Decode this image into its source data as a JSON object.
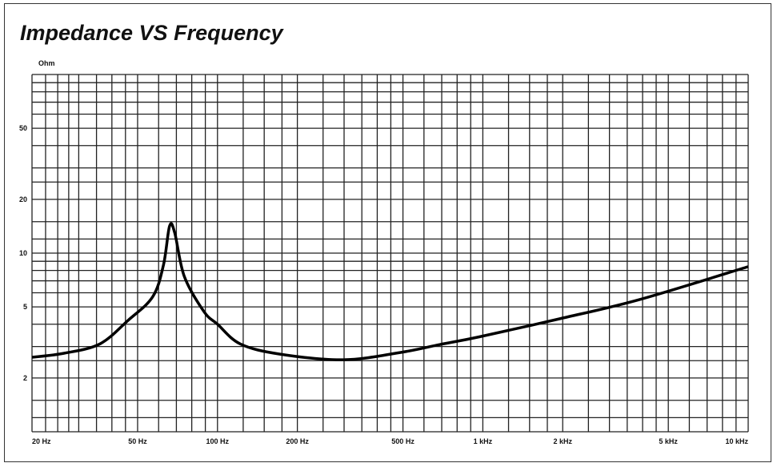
{
  "chart_data": {
    "type": "line",
    "title": "Impedance VS Frequency",
    "ylabel": "Ohm",
    "xscale": "log",
    "yscale": "log",
    "xlim": [
      20,
      10000
    ],
    "ylim": [
      1,
      100
    ],
    "grid": true,
    "x_ticks": [
      {
        "value": 20,
        "label": "20 Hz"
      },
      {
        "value": 50,
        "label": "50 Hz"
      },
      {
        "value": 100,
        "label": "100 Hz"
      },
      {
        "value": 200,
        "label": "200 Hz"
      },
      {
        "value": 500,
        "label": "500 Hz"
      },
      {
        "value": 1000,
        "label": "1 kHz"
      },
      {
        "value": 2000,
        "label": "2 kHz"
      },
      {
        "value": 5000,
        "label": "5 kHz"
      },
      {
        "value": 10000,
        "label": "10 kHz"
      }
    ],
    "y_ticks": [
      {
        "value": 2,
        "label": "2"
      },
      {
        "value": 5,
        "label": "5"
      },
      {
        "value": 10,
        "label": "10"
      },
      {
        "value": 20,
        "label": "20"
      },
      {
        "value": 50,
        "label": "50"
      }
    ],
    "series": [
      {
        "color": "#000000",
        "x": [
          20,
          26.4,
          36,
          46,
          57,
          62.6,
          66,
          69,
          75,
          89,
          100,
          122,
          172,
          298,
          490,
          690,
          970,
          1960,
          3900,
          10000
        ],
        "y": [
          2.61,
          2.75,
          3.1,
          4.2,
          5.7,
          8.6,
          14.2,
          13,
          7.4,
          4.7,
          4.0,
          3.1,
          2.72,
          2.53,
          2.78,
          3.08,
          3.4,
          4.3,
          5.5,
          8.4
        ]
      }
    ]
  }
}
